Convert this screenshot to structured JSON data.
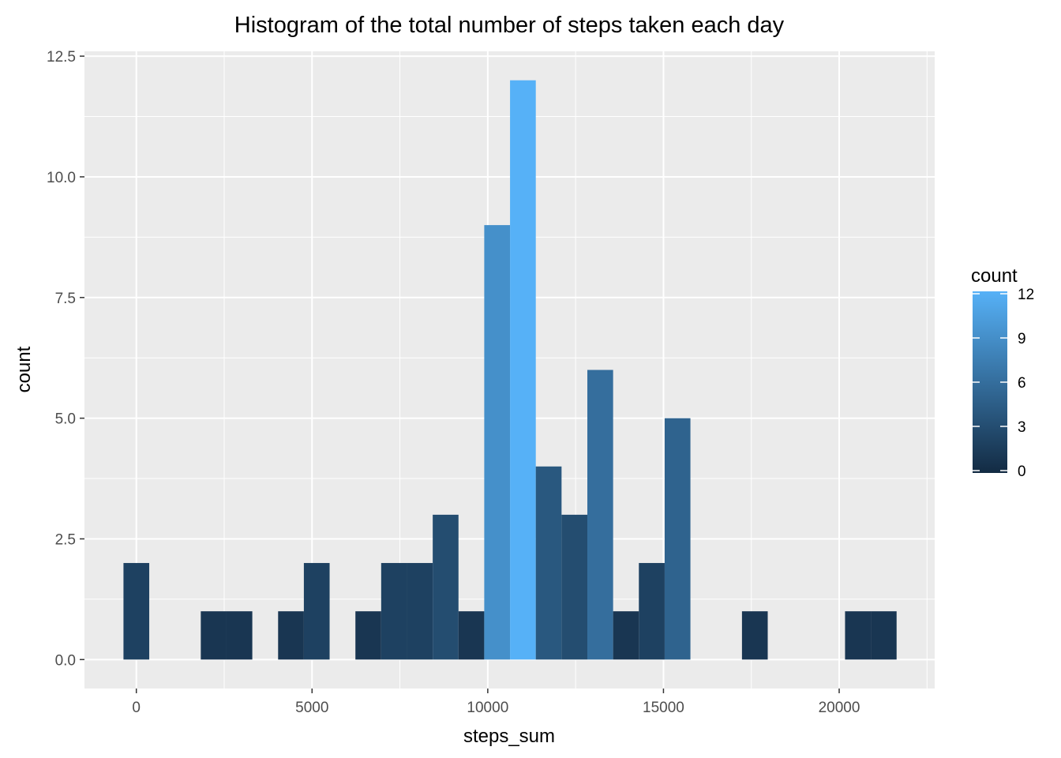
{
  "chart_data": {
    "type": "bar",
    "title": "Histogram of the total number of steps taken each day",
    "xlabel": "steps_sum",
    "ylabel": "count",
    "xlim": [
      -1476,
      22718
    ],
    "ylim": [
      -0.6,
      12.6
    ],
    "x_ticks": [
      0,
      5000,
      10000,
      15000,
      20000
    ],
    "x_tick_labels": [
      "0",
      "5000",
      "10000",
      "15000",
      "20000"
    ],
    "y_ticks": [
      0,
      2.5,
      5,
      7.5,
      10,
      12.5
    ],
    "y_tick_labels": [
      "0.0",
      "2.5",
      "5.0",
      "7.5",
      "10.0",
      "12.5"
    ],
    "grid": true,
    "bin_width": 733,
    "bins": [
      {
        "x0": -366,
        "x1": 367,
        "count": 2
      },
      {
        "x0": 1834,
        "x1": 2567,
        "count": 1
      },
      {
        "x0": 2567,
        "x1": 3300,
        "count": 1
      },
      {
        "x0": 4034,
        "x1": 4767,
        "count": 1
      },
      {
        "x0": 4767,
        "x1": 5500,
        "count": 2
      },
      {
        "x0": 6234,
        "x1": 6967,
        "count": 1
      },
      {
        "x0": 6967,
        "x1": 7700,
        "count": 2
      },
      {
        "x0": 7700,
        "x1": 8434,
        "count": 2
      },
      {
        "x0": 8434,
        "x1": 9167,
        "count": 3
      },
      {
        "x0": 9167,
        "x1": 9900,
        "count": 1
      },
      {
        "x0": 9900,
        "x1": 10634,
        "count": 9
      },
      {
        "x0": 10634,
        "x1": 11367,
        "count": 12
      },
      {
        "x0": 11367,
        "x1": 12100,
        "count": 4
      },
      {
        "x0": 12100,
        "x1": 12834,
        "count": 3
      },
      {
        "x0": 12834,
        "x1": 13567,
        "count": 6
      },
      {
        "x0": 13567,
        "x1": 14300,
        "count": 1
      },
      {
        "x0": 14300,
        "x1": 15034,
        "count": 2
      },
      {
        "x0": 15034,
        "x1": 15767,
        "count": 5
      },
      {
        "x0": 17234,
        "x1": 17967,
        "count": 1
      },
      {
        "x0": 20167,
        "x1": 20900,
        "count": 1
      },
      {
        "x0": 20900,
        "x1": 21634,
        "count": 1
      }
    ],
    "fill_scale": {
      "low": "#132B43",
      "high": "#56B1F7",
      "min": 0,
      "max": 12
    },
    "legend": {
      "title": "count",
      "placement": "right",
      "breaks": [
        0,
        3,
        6,
        9,
        12
      ],
      "labels": [
        "0",
        "3",
        "6",
        "9",
        "12"
      ]
    },
    "panel_background": "#EBEBEB",
    "grid_color": "#FFFFFF"
  }
}
